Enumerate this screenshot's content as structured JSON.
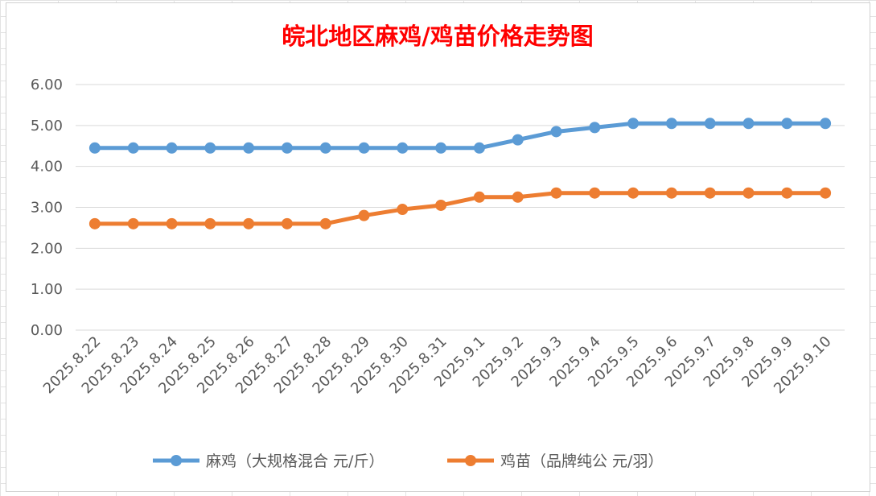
{
  "chart_data": {
    "type": "line",
    "title": "皖北地区麻鸡/鸡苗价格走势图",
    "title_color": "#ff0000",
    "categories": [
      "2025.8.22",
      "2025.8.23",
      "2025.8.24",
      "2025.8.25",
      "2025.8.26",
      "2025.8.27",
      "2025.8.28",
      "2025.8.29",
      "2025.8.30",
      "2025.8.31",
      "2025.9.1",
      "2025.9.2",
      "2025.9.3",
      "2025.9.4",
      "2025.9.5",
      "2025.9.6",
      "2025.9.7",
      "2025.9.8",
      "2025.9.9",
      "2025.9.10"
    ],
    "y_ticks": [
      "0.00",
      "1.00",
      "2.00",
      "3.00",
      "4.00",
      "5.00",
      "6.00"
    ],
    "ylim": [
      0,
      6
    ],
    "grid": true,
    "legend_position": "bottom",
    "series": [
      {
        "name": "麻鸡（大规格混合 元/斤）",
        "color": "#5b9bd5",
        "values": [
          4.45,
          4.45,
          4.45,
          4.45,
          4.45,
          4.45,
          4.45,
          4.45,
          4.45,
          4.45,
          4.45,
          4.65,
          4.85,
          4.95,
          5.05,
          5.05,
          5.05,
          5.05,
          5.05,
          5.05
        ]
      },
      {
        "name": "鸡苗（品牌纯公 元/羽）",
        "color": "#ed7d31",
        "values": [
          2.6,
          2.6,
          2.6,
          2.6,
          2.6,
          2.6,
          2.6,
          2.8,
          2.95,
          3.05,
          3.25,
          3.25,
          3.35,
          3.35,
          3.35,
          3.35,
          3.35,
          3.35,
          3.35,
          3.35
        ]
      }
    ]
  }
}
